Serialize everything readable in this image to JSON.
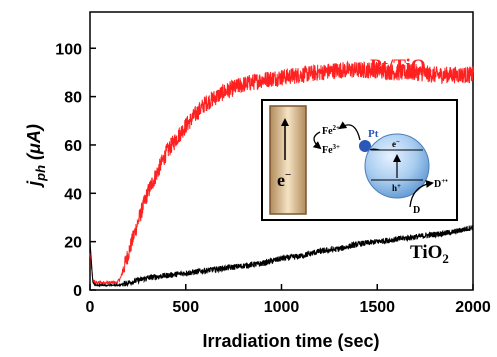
{
  "chart_data": {
    "type": "line",
    "title": "",
    "xlabel": "Irradiation time (sec)",
    "ylabel_main": "j",
    "ylabel_sub": "ph",
    "ylabel_unit": " (μA)",
    "xlim": [
      0,
      2000
    ],
    "ylim": [
      0,
      115
    ],
    "xticks": [
      0,
      500,
      1000,
      1500,
      2000
    ],
    "yticks": [
      0,
      20,
      40,
      60,
      80,
      100
    ],
    "grid": false,
    "series": [
      {
        "name_main": "Pt/TiO",
        "name_sub": "2",
        "color": "#ff2020",
        "noise": 3.5,
        "x": [
          0,
          15,
          30,
          60,
          100,
          140,
          160,
          200,
          250,
          300,
          400,
          500,
          600,
          700,
          800,
          900,
          1000,
          1100,
          1200,
          1300,
          1400,
          1500,
          1600,
          1700,
          1800,
          1900,
          2000
        ],
        "y": [
          15,
          4,
          3,
          3,
          3,
          3,
          5,
          15,
          28,
          40,
          57,
          68,
          77,
          82,
          85,
          87,
          88,
          89,
          90,
          91,
          91,
          91,
          90,
          90,
          89,
          89,
          89
        ]
      },
      {
        "name_main": "TiO",
        "name_sub": "2",
        "color": "#000000",
        "noise": 1.2,
        "x": [
          0,
          15,
          30,
          60,
          100,
          150,
          200,
          300,
          400,
          500,
          600,
          700,
          800,
          900,
          1000,
          1100,
          1200,
          1300,
          1400,
          1500,
          1600,
          1700,
          1800,
          1900,
          2000
        ],
        "y": [
          20,
          3,
          2,
          2,
          2,
          2,
          3,
          5,
          6,
          7,
          8,
          9,
          10,
          11,
          13,
          14,
          16,
          17,
          19,
          20,
          21,
          22,
          23,
          24,
          26
        ]
      }
    ],
    "inset": {
      "electron": "e",
      "electron_sup": "−",
      "fe2_base": "Fe",
      "fe2_sup": "2+",
      "fe3_base": "Fe",
      "fe3_sup": "3+",
      "pt_label": "Pt",
      "cb_electron": "e",
      "cb_electron_sup": "−",
      "vb_hole": "h",
      "vb_hole_sup": "+",
      "donor_ox": "D",
      "donor_ox_sup": "+•",
      "donor": "D"
    }
  }
}
